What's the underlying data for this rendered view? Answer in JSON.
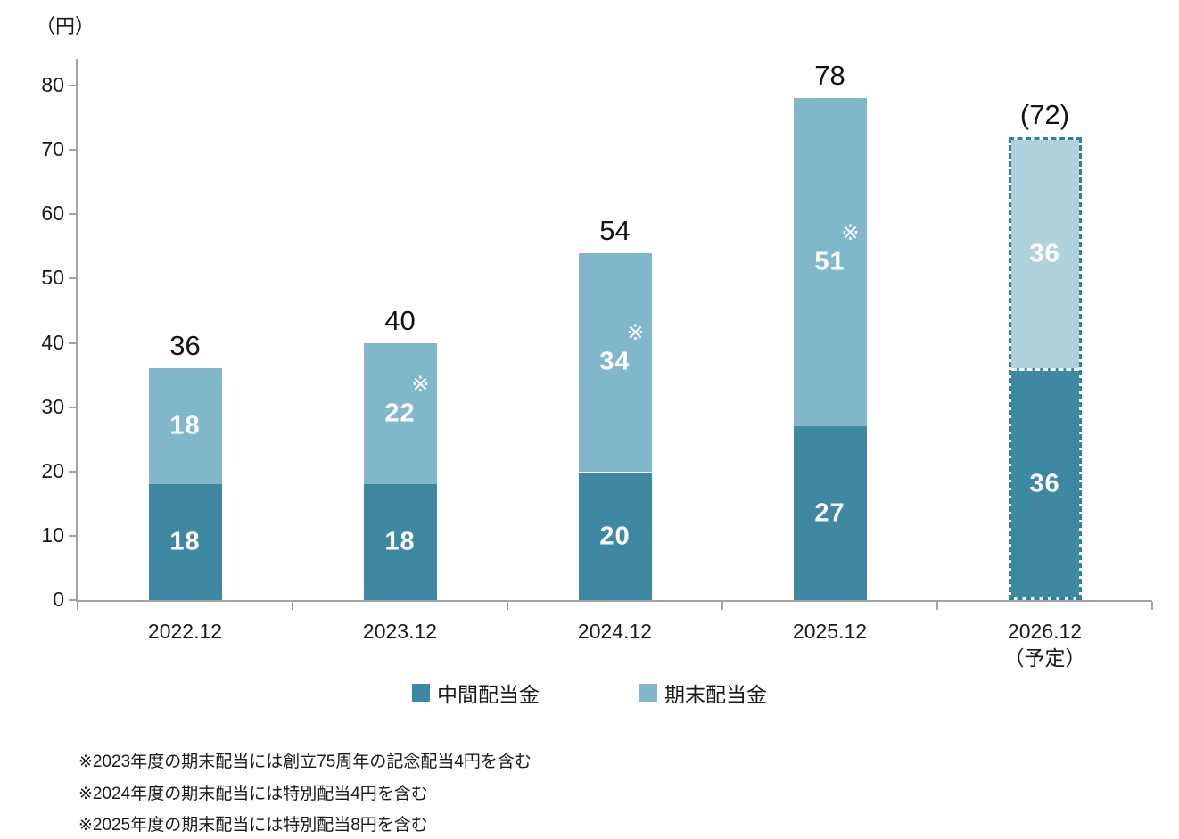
{
  "colors": {
    "interim": "#3F88A2",
    "yearend": "#80B7CB",
    "yearend_planned": "#AFD2DE",
    "planned_border": "#34809F",
    "axis": "#A3A3A3",
    "value_text": "#FFFFFF",
    "label_text": "#1A1A1A"
  },
  "axis": {
    "unit_label": "（円）"
  },
  "chart_data": {
    "type": "bar",
    "stacked": true,
    "title": "",
    "ylabel": "（円）",
    "xlabel": "",
    "unit": "円",
    "categories": [
      "2022.12",
      "2023.12",
      "2024.12",
      "2025.12",
      "2026.12"
    ],
    "category_sublabels": [
      "",
      "",
      "",
      "",
      "（予定）"
    ],
    "series": [
      {
        "name": "中間配当金",
        "values": [
          18,
          18,
          20,
          27,
          36
        ]
      },
      {
        "name": "期末配当金",
        "values": [
          18,
          22,
          34,
          51,
          36
        ]
      }
    ],
    "totals": [
      36,
      40,
      54,
      78,
      72
    ],
    "total_labels": [
      "36",
      "40",
      "54",
      "78",
      "(72)"
    ],
    "asterisk_on_yearend": [
      false,
      true,
      true,
      true,
      false
    ],
    "asterisk_glyph": "※",
    "planned_category_index": 4,
    "white_divider_index": 2,
    "ylim": [
      0,
      80
    ],
    "yticks": [
      0,
      10,
      20,
      30,
      40,
      50,
      60,
      70,
      80
    ],
    "grid": false,
    "legend_position": "bottom"
  },
  "legend": {
    "items": [
      {
        "label": "中間配当金",
        "color": "#3F88A2"
      },
      {
        "label": "期末配当金",
        "color": "#80B7CB"
      }
    ]
  },
  "footnotes": [
    "※2023年度の期末配当には創立75周年の記念配当4円を含む",
    "※2024年度の期末配当には特別配当4円を含む",
    "※2025年度の期末配当には特別配当8円を含む"
  ]
}
